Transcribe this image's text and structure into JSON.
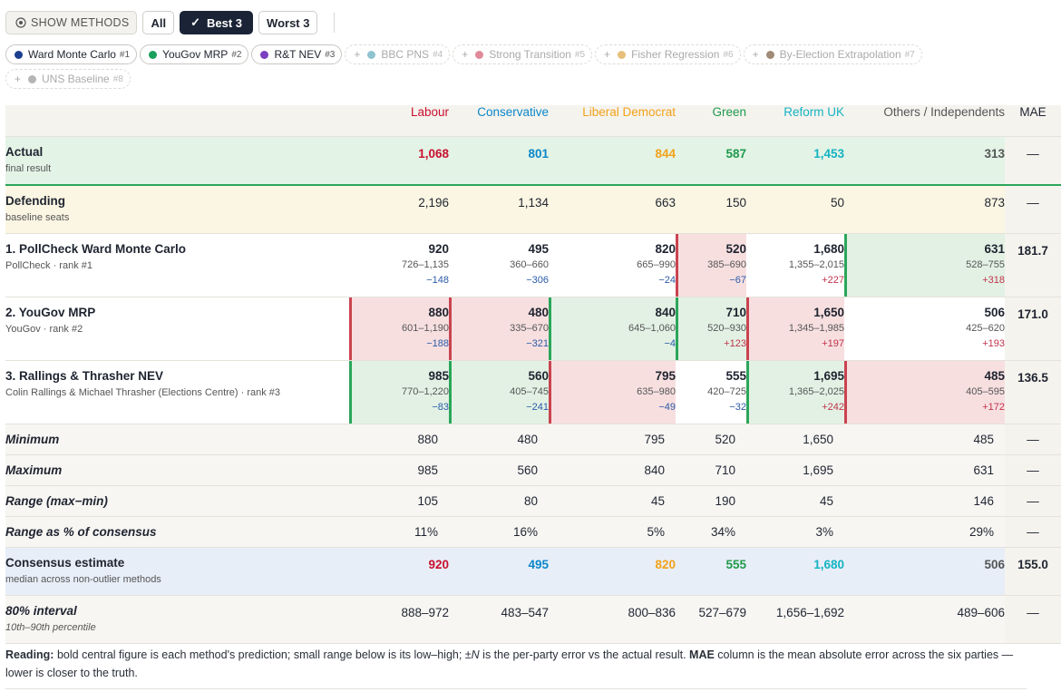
{
  "controls": {
    "show_methods_label": "SHOW METHODS",
    "buttons": [
      {
        "label": "All",
        "active": false
      },
      {
        "label": "Best 3",
        "active": true,
        "check": "✓"
      },
      {
        "label": "Worst 3",
        "active": false
      }
    ]
  },
  "chips": [
    {
      "label": "Ward Monte Carlo",
      "rank": "#1",
      "color": "#1b3f8f",
      "on": true
    },
    {
      "label": "YouGov MRP",
      "rank": "#2",
      "color": "#1aa05c",
      "on": true
    },
    {
      "label": "R&T NEV",
      "rank": "#3",
      "color": "#7b3fbf",
      "on": true
    },
    {
      "label": "BBC PNS",
      "rank": "#4",
      "color": "#8fc3cf",
      "on": false
    },
    {
      "label": "Strong Transition",
      "rank": "#5",
      "color": "#e08a9a",
      "on": false
    },
    {
      "label": "Fisher Regression",
      "rank": "#6",
      "color": "#e6c07a",
      "on": false
    },
    {
      "label": "By-Election Extrapolation",
      "rank": "#7",
      "color": "#a08a78",
      "on": false
    },
    {
      "label": "UNS Baseline",
      "rank": "#8",
      "color": "#b5b5b5",
      "on": false
    }
  ],
  "header": {
    "parties": [
      {
        "label": "Labour",
        "color": "#c8102e"
      },
      {
        "label": "Conservative",
        "color": "#0a87c9"
      },
      {
        "label": "Liberal Democrat",
        "color": "#f2a21a"
      },
      {
        "label": "Green",
        "color": "#1f9a4c"
      },
      {
        "label": "Reform UK",
        "color": "#14b3c2"
      },
      {
        "label": "Others / Independents",
        "color": "#555555"
      }
    ],
    "mae": "MAE"
  },
  "actual": {
    "title": "Actual",
    "sub": "final result",
    "values": [
      "1,068",
      "801",
      "844",
      "587",
      "1,453",
      "313"
    ],
    "mae": "—"
  },
  "defending": {
    "title": "Defending",
    "sub": "baseline seats",
    "values": [
      "2,196",
      "1,134",
      "663",
      "150",
      "50",
      "873"
    ],
    "mae": "—"
  },
  "methods": [
    {
      "title": "1. PollCheck Ward Monte Carlo",
      "sub": "PollCheck · rank #1",
      "mae": "181.7",
      "cells": [
        {
          "pred": "920",
          "range": "726–1,135",
          "err": "−148",
          "sign": "neg",
          "status": ""
        },
        {
          "pred": "495",
          "range": "360–660",
          "err": "−306",
          "sign": "neg",
          "status": ""
        },
        {
          "pred": "820",
          "range": "665–990",
          "err": "−24",
          "sign": "neg",
          "status": ""
        },
        {
          "pred": "520",
          "range": "385–690",
          "err": "−67",
          "sign": "neg",
          "status": "bad"
        },
        {
          "pred": "1,680",
          "range": "1,355–2,015",
          "err": "+227",
          "sign": "pos",
          "status": ""
        },
        {
          "pred": "631",
          "range": "528–755",
          "err": "+318",
          "sign": "pos",
          "status": "good"
        }
      ]
    },
    {
      "title": "2. YouGov MRP",
      "sub": "YouGov · rank #2",
      "mae": "171.0",
      "cells": [
        {
          "pred": "880",
          "range": "601–1,190",
          "err": "−188",
          "sign": "neg",
          "status": "bad"
        },
        {
          "pred": "480",
          "range": "335–670",
          "err": "−321",
          "sign": "neg",
          "status": "bad"
        },
        {
          "pred": "840",
          "range": "645–1,060",
          "err": "−4",
          "sign": "neg",
          "status": "good"
        },
        {
          "pred": "710",
          "range": "520–930",
          "err": "+123",
          "sign": "pos",
          "status": "good"
        },
        {
          "pred": "1,650",
          "range": "1,345–1,985",
          "err": "+197",
          "sign": "pos",
          "status": "bad"
        },
        {
          "pred": "506",
          "range": "425–620",
          "err": "+193",
          "sign": "pos",
          "status": ""
        }
      ]
    },
    {
      "title": "3. Rallings & Thrasher NEV",
      "sub": "Colin Rallings & Michael Thrasher (Elections Centre) · rank #3",
      "mae": "136.5",
      "cells": [
        {
          "pred": "985",
          "range": "770–1,220",
          "err": "−83",
          "sign": "neg",
          "status": "good"
        },
        {
          "pred": "560",
          "range": "405–745",
          "err": "−241",
          "sign": "neg",
          "status": "good"
        },
        {
          "pred": "795",
          "range": "635–980",
          "err": "−49",
          "sign": "neg",
          "status": "bad"
        },
        {
          "pred": "555",
          "range": "420–725",
          "err": "−32",
          "sign": "neg",
          "status": ""
        },
        {
          "pred": "1,695",
          "range": "1,365–2,025",
          "err": "+242",
          "sign": "pos",
          "status": "good"
        },
        {
          "pred": "485",
          "range": "405–595",
          "err": "+172",
          "sign": "pos",
          "status": "bad"
        }
      ]
    }
  ],
  "stats": [
    {
      "title": "Minimum",
      "values": [
        "880",
        "480",
        "795",
        "520",
        "1,650",
        "485"
      ],
      "mae": "—"
    },
    {
      "title": "Maximum",
      "values": [
        "985",
        "560",
        "840",
        "710",
        "1,695",
        "631"
      ],
      "mae": "—"
    },
    {
      "title": "Range (max−min)",
      "values": [
        "105",
        "80",
        "45",
        "190",
        "45",
        "146"
      ],
      "mae": "—"
    },
    {
      "title": "Range as % of consensus",
      "values": [
        "11%",
        "16%",
        "5%",
        "34%",
        "3%",
        "29%"
      ],
      "mae": "—"
    }
  ],
  "consensus": {
    "title": "Consensus estimate",
    "sub": "median across non-outlier methods",
    "values": [
      "920",
      "495",
      "820",
      "555",
      "1,680",
      "506"
    ],
    "mae": "155.0"
  },
  "interval": {
    "title": "80% interval",
    "sub": "10th–90th percentile",
    "values": [
      "888–972",
      "483–547",
      "800–836",
      "527–679",
      "1,656–1,692",
      "489–606"
    ],
    "mae": "—"
  },
  "reading": {
    "lead": "Reading:",
    "part1": " bold central figure is each method's prediction; small range below is its low–high; ±",
    "n": "N",
    "part2": " is the per-party error vs the actual result. ",
    "mae": "MAE",
    "part3": " column is the mean absolute error across the six parties — lower is closer to the truth."
  }
}
